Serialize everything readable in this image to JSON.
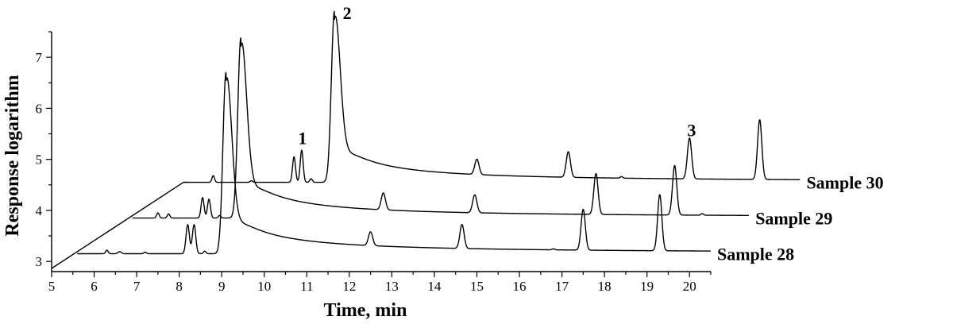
{
  "chart_data": {
    "type": "line",
    "title": "",
    "xlabel": "Time, min",
    "ylabel": "Response logarithm",
    "xlim": [
      5,
      20.5
    ],
    "ylim": [
      2.8,
      7.5
    ],
    "x_ticks": [
      5,
      6,
      7,
      8,
      9,
      10,
      11,
      12,
      13,
      14,
      15,
      16,
      17,
      18,
      19,
      20
    ],
    "y_ticks": [
      3,
      4,
      5,
      6,
      7
    ],
    "grid": false,
    "legend": "none",
    "series": [
      {
        "name": "Sample 28",
        "baseline": 3.15,
        "x_range": [
          5.6,
          20.5
        ],
        "peaks": [
          {
            "x": 6.3,
            "y": 3.22,
            "w": 0.03
          },
          {
            "x": 6.6,
            "y": 3.19,
            "w": 0.04
          },
          {
            "x": 7.2,
            "y": 3.18,
            "w": 0.03
          },
          {
            "x": 8.2,
            "y": 3.72,
            "w": 0.04
          },
          {
            "x": 8.35,
            "y": 3.72,
            "w": 0.04
          },
          {
            "x": 8.6,
            "y": 3.2,
            "w": 0.03
          },
          {
            "x": 9.1,
            "y": 6.7,
            "w": 0.09,
            "tail": true
          },
          {
            "x": 12.5,
            "y": 3.42,
            "w": 0.05
          },
          {
            "x": 14.65,
            "y": 3.62,
            "w": 0.05
          },
          {
            "x": 16.8,
            "y": 3.17,
            "w": 0.03
          },
          {
            "x": 17.5,
            "y": 3.95,
            "w": 0.05
          },
          {
            "x": 19.3,
            "y": 4.25,
            "w": 0.05
          }
        ]
      },
      {
        "name": "Sample 29",
        "baseline": 3.85,
        "x_range": [
          6.9,
          21.4
        ],
        "peaks": [
          {
            "x": 7.5,
            "y": 3.95,
            "w": 0.03
          },
          {
            "x": 7.75,
            "y": 3.93,
            "w": 0.03
          },
          {
            "x": 8.55,
            "y": 4.25,
            "w": 0.035
          },
          {
            "x": 8.7,
            "y": 4.22,
            "w": 0.035
          },
          {
            "x": 8.95,
            "y": 3.9,
            "w": 0.03
          },
          {
            "x": 9.45,
            "y": 7.38,
            "w": 0.09,
            "tail": true
          },
          {
            "x": 12.8,
            "y": 4.18,
            "w": 0.05
          },
          {
            "x": 14.95,
            "y": 4.2,
            "w": 0.05
          },
          {
            "x": 17.8,
            "y": 4.65,
            "w": 0.05
          },
          {
            "x": 19.65,
            "y": 4.82,
            "w": 0.05
          },
          {
            "x": 20.3,
            "y": 3.88,
            "w": 0.03
          }
        ]
      },
      {
        "name": "Sample 30",
        "baseline": 4.55,
        "x_range": [
          8.1,
          22.6
        ],
        "peaks": [
          {
            "x": 8.8,
            "y": 4.68,
            "w": 0.03
          },
          {
            "x": 9.7,
            "y": 4.58,
            "w": 0.03
          },
          {
            "x": 10.7,
            "y": 5.05,
            "w": 0.035
          },
          {
            "x": 10.88,
            "y": 5.18,
            "w": 0.035
          },
          {
            "x": 11.1,
            "y": 4.62,
            "w": 0.03
          },
          {
            "x": 11.65,
            "y": 7.9,
            "w": 0.09,
            "tail": true
          },
          {
            "x": 15.0,
            "y": 4.85,
            "w": 0.05
          },
          {
            "x": 17.15,
            "y": 5.05,
            "w": 0.05
          },
          {
            "x": 18.4,
            "y": 4.58,
            "w": 0.03
          },
          {
            "x": 20.0,
            "y": 5.35,
            "w": 0.05
          },
          {
            "x": 21.65,
            "y": 5.72,
            "w": 0.05
          }
        ]
      }
    ],
    "annotations": [
      {
        "text": "1",
        "x": 10.9,
        "y": 5.3
      },
      {
        "text": "2",
        "x": 11.95,
        "y": 7.75
      },
      {
        "text": "3",
        "x": 20.05,
        "y": 5.45
      }
    ]
  }
}
